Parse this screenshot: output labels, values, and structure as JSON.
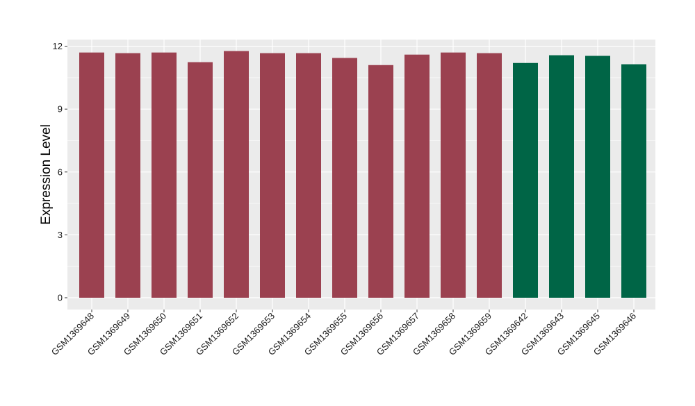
{
  "chart_data": {
    "type": "bar",
    "title": "",
    "xlabel": "",
    "ylabel": "Expression Level",
    "ylim": [
      0,
      12.6
    ],
    "yticks": [
      0,
      3,
      6,
      9,
      12
    ],
    "grid": true,
    "legend": "none",
    "categories": [
      "GSM1369648",
      "GSM1369649",
      "GSM1369650",
      "GSM1369651",
      "GSM1369652",
      "GSM1369653",
      "GSM1369654",
      "GSM1369655",
      "GSM1369656",
      "GSM1369657",
      "GSM1369658",
      "GSM1369659",
      "GSM1369642",
      "GSM1369643",
      "GSM1369645",
      "GSM1369646"
    ],
    "values": [
      11.7,
      11.67,
      11.7,
      11.24,
      11.77,
      11.67,
      11.67,
      11.44,
      11.1,
      11.6,
      11.7,
      11.67,
      11.2,
      11.57,
      11.54,
      11.14
    ],
    "bar_colors": [
      "#9b4150",
      "#9b4150",
      "#9b4150",
      "#9b4150",
      "#9b4150",
      "#9b4150",
      "#9b4150",
      "#9b4150",
      "#9b4150",
      "#9b4150",
      "#9b4150",
      "#9b4150",
      "#006546",
      "#006546",
      "#006546",
      "#006546"
    ],
    "panel_background": "#ebebeb",
    "gridline_color": "#ffffff"
  }
}
